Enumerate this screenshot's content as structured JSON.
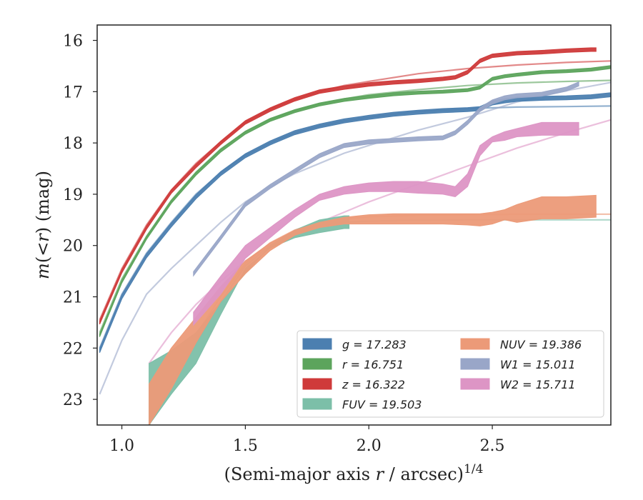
{
  "chart_data": {
    "type": "line",
    "xlabel": "(Semi-major axis r / arcsec)^{1/4}",
    "ylabel": "m(< r) (mag)",
    "xlim": [
      0.9,
      2.98
    ],
    "ylim": [
      23.5,
      15.7
    ],
    "y_inverted": true,
    "xticks": [
      1.0,
      1.5,
      2.0,
      2.5
    ],
    "xtick_labels": [
      "1.0",
      "1.5",
      "2.0",
      "2.5"
    ],
    "yticks": [
      16,
      17,
      18,
      19,
      20,
      21,
      22,
      23
    ],
    "ytick_labels": [
      "16",
      "17",
      "18",
      "19",
      "20",
      "21",
      "22",
      "23"
    ],
    "grid": false,
    "legend_position": "lower-right",
    "legend": [
      {
        "label": "g = 17.283",
        "color": "#4c7fb0"
      },
      {
        "label": "r = 16.751",
        "color": "#5ca45c"
      },
      {
        "label": "z = 16.322",
        "color": "#cf3a3a"
      },
      {
        "label": "FUV = 19.503",
        "color": "#7cbfa8"
      },
      {
        "label": "NUV = 19.386",
        "color": "#ec9a78"
      },
      {
        "label": "W1 = 15.011",
        "color": "#99a6c8"
      },
      {
        "label": "W2 = 15.711",
        "color": "#dd95c5"
      }
    ],
    "series": [
      {
        "name": "g",
        "color": "#4c7fb0",
        "style": "band",
        "x": [
          0.91,
          1.0,
          1.1,
          1.2,
          1.3,
          1.4,
          1.5,
          1.6,
          1.7,
          1.8,
          1.9,
          2.0,
          2.1,
          2.2,
          2.3,
          2.4,
          2.45,
          2.5,
          2.55,
          2.6,
          2.7,
          2.8,
          2.9,
          2.98
        ],
        "y": [
          22.05,
          21.0,
          20.2,
          19.6,
          19.05,
          18.6,
          18.25,
          18.0,
          17.8,
          17.67,
          17.57,
          17.5,
          17.44,
          17.4,
          17.37,
          17.35,
          17.33,
          17.22,
          17.18,
          17.15,
          17.13,
          17.12,
          17.1,
          17.06
        ],
        "width": 0.08
      },
      {
        "name": "g model",
        "color": "#4c7fb0",
        "style": "model",
        "x": [
          0.91,
          1.0,
          1.1,
          1.2,
          1.3,
          1.4,
          1.5,
          1.6,
          1.7,
          1.8,
          1.9,
          2.0,
          2.1,
          2.2,
          2.4,
          2.6,
          2.8,
          2.98
        ],
        "y": [
          22.0,
          20.95,
          20.15,
          19.55,
          19.0,
          18.58,
          18.24,
          18.0,
          17.8,
          17.67,
          17.57,
          17.5,
          17.44,
          17.39,
          17.33,
          17.3,
          17.29,
          17.28
        ]
      },
      {
        "name": "r",
        "color": "#5ca45c",
        "style": "band",
        "x": [
          0.91,
          1.0,
          1.1,
          1.2,
          1.3,
          1.4,
          1.5,
          1.6,
          1.7,
          1.8,
          1.9,
          2.0,
          2.1,
          2.2,
          2.3,
          2.4,
          2.45,
          2.5,
          2.55,
          2.6,
          2.7,
          2.8,
          2.9,
          2.98
        ],
        "y": [
          21.75,
          20.7,
          19.85,
          19.15,
          18.6,
          18.15,
          17.8,
          17.55,
          17.38,
          17.25,
          17.16,
          17.1,
          17.05,
          17.02,
          17.0,
          16.97,
          16.92,
          16.75,
          16.7,
          16.67,
          16.62,
          16.6,
          16.57,
          16.52
        ],
        "width": 0.06
      },
      {
        "name": "r model",
        "color": "#5ca45c",
        "style": "model",
        "x": [
          0.91,
          1.0,
          1.1,
          1.2,
          1.3,
          1.4,
          1.5,
          1.6,
          1.7,
          1.8,
          1.9,
          2.0,
          2.2,
          2.4,
          2.6,
          2.8,
          2.98
        ],
        "y": [
          21.7,
          20.65,
          19.82,
          19.12,
          18.57,
          18.12,
          17.78,
          17.54,
          17.37,
          17.24,
          17.14,
          17.06,
          16.96,
          16.88,
          16.83,
          16.8,
          16.78
        ]
      },
      {
        "name": "z",
        "color": "#cf3a3a",
        "style": "band",
        "x": [
          0.91,
          1.0,
          1.1,
          1.2,
          1.3,
          1.4,
          1.5,
          1.6,
          1.7,
          1.8,
          1.9,
          2.0,
          2.1,
          2.2,
          2.3,
          2.35,
          2.4,
          2.45,
          2.5,
          2.6,
          2.7,
          2.8,
          2.9,
          2.92
        ],
        "y": [
          21.5,
          20.5,
          19.65,
          18.95,
          18.45,
          18.0,
          17.6,
          17.35,
          17.15,
          17.0,
          16.92,
          16.86,
          16.82,
          16.79,
          16.75,
          16.72,
          16.62,
          16.4,
          16.3,
          16.25,
          16.23,
          16.2,
          16.18,
          16.18
        ],
        "width": 0.07
      },
      {
        "name": "z model",
        "color": "#cf3a3a",
        "style": "model",
        "x": [
          0.91,
          1.0,
          1.1,
          1.2,
          1.3,
          1.4,
          1.5,
          1.6,
          1.7,
          1.8,
          1.9,
          2.0,
          2.2,
          2.4,
          2.6,
          2.8,
          2.98
        ],
        "y": [
          21.45,
          20.45,
          19.6,
          18.92,
          18.4,
          17.98,
          17.6,
          17.34,
          17.15,
          17.0,
          16.88,
          16.8,
          16.65,
          16.55,
          16.48,
          16.43,
          16.4
        ]
      },
      {
        "name": "FUV",
        "color": "#7cbfa8",
        "style": "band",
        "x": [
          1.11,
          1.2,
          1.3,
          1.4,
          1.5,
          1.6,
          1.7,
          1.8,
          1.9,
          1.92
        ],
        "y_low": [
          22.3,
          22.05,
          21.7,
          21.1,
          20.55,
          20.0,
          19.7,
          19.5,
          19.42,
          19.42
        ],
        "y_high": [
          23.5,
          22.9,
          22.3,
          21.35,
          20.45,
          20.05,
          19.85,
          19.75,
          19.67,
          19.67
        ]
      },
      {
        "name": "FUV model",
        "color": "#7cbfa8",
        "style": "model",
        "x": [
          1.11,
          1.2,
          1.3,
          1.4,
          1.5,
          1.6,
          1.7,
          1.8,
          1.9,
          2.0,
          2.2,
          2.4,
          2.6,
          2.8,
          2.98
        ],
        "y": [
          23.5,
          22.7,
          21.9,
          21.1,
          20.4,
          20.0,
          19.75,
          19.6,
          19.55,
          19.52,
          19.51,
          19.5,
          19.5,
          19.5,
          19.5
        ]
      },
      {
        "name": "NUV",
        "color": "#ec9a78",
        "style": "band",
        "x": [
          1.11,
          1.2,
          1.3,
          1.4,
          1.5,
          1.6,
          1.7,
          1.8,
          1.9,
          2.0,
          2.1,
          2.2,
          2.3,
          2.4,
          2.45,
          2.5,
          2.55,
          2.6,
          2.7,
          2.8,
          2.92
        ],
        "y_low": [
          22.7,
          22.0,
          21.4,
          20.8,
          20.3,
          19.95,
          19.7,
          19.55,
          19.45,
          19.4,
          19.38,
          19.38,
          19.38,
          19.38,
          19.38,
          19.35,
          19.3,
          19.2,
          19.05,
          19.05,
          19.02
        ],
        "y_high": [
          23.5,
          22.8,
          21.9,
          21.1,
          20.55,
          20.1,
          19.8,
          19.65,
          19.58,
          19.58,
          19.58,
          19.58,
          19.58,
          19.6,
          19.62,
          19.58,
          19.5,
          19.55,
          19.48,
          19.48,
          19.45
        ]
      },
      {
        "name": "NUV model",
        "color": "#ec9a78",
        "style": "model",
        "x": [
          1.11,
          1.2,
          1.3,
          1.4,
          1.5,
          1.6,
          1.7,
          1.8,
          1.9,
          2.0,
          2.2,
          2.4,
          2.6,
          2.8,
          2.98
        ],
        "y": [
          23.5,
          22.5,
          21.75,
          21.0,
          20.35,
          19.95,
          19.7,
          19.55,
          19.48,
          19.44,
          19.41,
          19.4,
          19.39,
          19.39,
          19.39
        ]
      },
      {
        "name": "W1",
        "color": "#99a6c8",
        "style": "band",
        "x": [
          1.29,
          1.4,
          1.5,
          1.6,
          1.7,
          1.8,
          1.9,
          2.0,
          2.1,
          2.2,
          2.3,
          2.35,
          2.4,
          2.45,
          2.5,
          2.55,
          2.6,
          2.7,
          2.8,
          2.85
        ],
        "y": [
          20.55,
          19.85,
          19.2,
          18.85,
          18.55,
          18.25,
          18.05,
          17.98,
          17.95,
          17.92,
          17.9,
          17.8,
          17.6,
          17.35,
          17.2,
          17.12,
          17.08,
          17.05,
          16.95,
          16.85
        ],
        "width": 0.08
      },
      {
        "name": "W1 model",
        "color": "#99a6c8",
        "style": "model",
        "x": [
          0.91,
          1.0,
          1.1,
          1.2,
          1.3,
          1.4,
          1.5,
          1.6,
          1.7,
          1.8,
          1.9,
          2.0,
          2.2,
          2.4,
          2.6,
          2.8,
          2.98
        ],
        "y": [
          22.9,
          21.85,
          20.95,
          20.45,
          20.0,
          19.55,
          19.15,
          18.85,
          18.6,
          18.4,
          18.2,
          18.05,
          17.75,
          17.5,
          17.2,
          16.98,
          16.82
        ]
      },
      {
        "name": "W2",
        "color": "#dd95c5",
        "style": "band",
        "x": [
          1.29,
          1.4,
          1.5,
          1.6,
          1.7,
          1.8,
          1.9,
          2.0,
          2.1,
          2.2,
          2.3,
          2.35,
          2.4,
          2.45,
          2.5,
          2.55,
          2.6,
          2.7,
          2.8,
          2.85
        ],
        "y_low": [
          21.3,
          20.6,
          20.0,
          19.65,
          19.3,
          19.0,
          18.85,
          18.78,
          18.75,
          18.75,
          18.8,
          18.85,
          18.6,
          18.05,
          17.88,
          17.78,
          17.72,
          17.6,
          17.6,
          17.6
        ],
        "y_high": [
          21.55,
          20.95,
          20.25,
          19.85,
          19.45,
          19.12,
          19.0,
          18.95,
          18.95,
          18.98,
          19.0,
          19.05,
          18.85,
          18.25,
          17.98,
          17.95,
          17.88,
          17.85,
          17.85,
          17.85
        ]
      },
      {
        "name": "W2 model",
        "color": "#dd95c5",
        "style": "model",
        "x": [
          1.11,
          1.2,
          1.3,
          1.4,
          1.5,
          1.6,
          1.7,
          1.8,
          1.9,
          2.0,
          2.2,
          2.4,
          2.6,
          2.8,
          2.98
        ],
        "y": [
          22.3,
          21.7,
          21.15,
          20.7,
          20.3,
          20.0,
          19.75,
          19.55,
          19.35,
          19.15,
          18.8,
          18.45,
          18.1,
          17.8,
          17.55
        ]
      }
    ]
  }
}
